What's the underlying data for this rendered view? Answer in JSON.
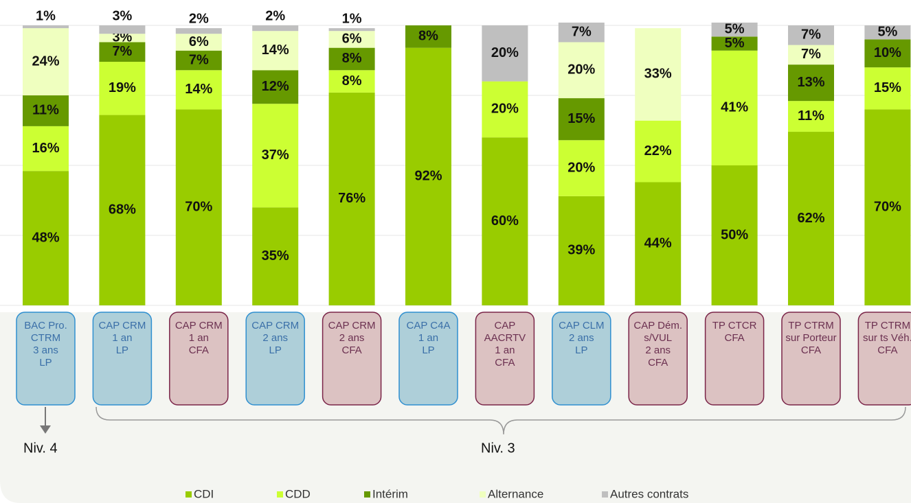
{
  "chart_data": {
    "type": "stacked_bar",
    "categories": [
      [
        "BAC Pro.",
        "CTRM",
        "3 ans",
        "LP"
      ],
      [
        "CAP CRM",
        "1 an",
        "LP"
      ],
      [
        "CAP CRM",
        "1 an",
        "CFA"
      ],
      [
        "CAP CRM",
        "2 ans",
        "LP"
      ],
      [
        "CAP CRM",
        "2 ans",
        "CFA"
      ],
      [
        "CAP C4A",
        "1 an",
        "LP"
      ],
      [
        "CAP",
        "AACRTV",
        "1 an",
        "CFA"
      ],
      [
        "CAP CLM",
        "2 ans",
        "LP"
      ],
      [
        "CAP Dém.",
        "s/VUL",
        "2 ans",
        "CFA"
      ],
      [
        "TP CTCR",
        "CFA"
      ],
      [
        "TP CTRM",
        "sur Porteur",
        "CFA"
      ],
      [
        "TP CTRM",
        "sur ts Véh.",
        "CFA"
      ]
    ],
    "box_colors": [
      "#aecfd9",
      "#aecfd9",
      "#dcc2c2",
      "#aecfd9",
      "#dcc2c2",
      "#aecfd9",
      "#dcc2c2",
      "#aecfd9",
      "#dcc2c2",
      "#dcc2c2",
      "#dcc2c2",
      "#dcc2c2"
    ],
    "series": [
      {
        "name": "CDI",
        "color": "#99cc00",
        "values": [
          48,
          68,
          70,
          35,
          76,
          92,
          60,
          39,
          44,
          50,
          62,
          70
        ],
        "value_labels": [
          "48%",
          "68%",
          "70%",
          "35%",
          "76%",
          "92%",
          "60%",
          "39%",
          "44%",
          "50%",
          "62%",
          "70%"
        ]
      },
      {
        "name": "CDD",
        "color": "#ccff33",
        "values": [
          16,
          19,
          14,
          37,
          8,
          null,
          20,
          20,
          22,
          41,
          11,
          15
        ],
        "value_labels": [
          "16%",
          "19%",
          "14%",
          "37%",
          "8%",
          null,
          "20%",
          "20%",
          "22%",
          "41%",
          "11%",
          "15%"
        ]
      },
      {
        "name": "Intérim",
        "color": "#669900",
        "values": [
          11,
          7,
          7,
          12,
          8,
          8,
          null,
          15,
          null,
          5,
          13,
          10
        ],
        "value_labels": [
          "11%",
          "7%",
          "7%",
          "12%",
          "8%",
          "8%",
          null,
          "15%",
          null,
          "5%",
          "13%",
          "10%"
        ]
      },
      {
        "name": "Alternance",
        "color": "#efffbf",
        "values": [
          24,
          3,
          6,
          14,
          6,
          null,
          null,
          20,
          33,
          null,
          7,
          null
        ],
        "value_labels": [
          "24%",
          "3%",
          "6%",
          "14%",
          "6%",
          null,
          null,
          "20%",
          "33%",
          null,
          "7%",
          null
        ]
      },
      {
        "name": "Autres contrats",
        "color": "#bfbfbf",
        "values": [
          1,
          3,
          2,
          2,
          1,
          null,
          20,
          7,
          null,
          5,
          7,
          5
        ],
        "value_labels": [
          "1%",
          "3%",
          "2%",
          "2%",
          "1%",
          null,
          "20%",
          "7%",
          null,
          "5%",
          "7%",
          "5%"
        ]
      }
    ],
    "ylim": [
      0,
      100
    ],
    "yticks": [
      0,
      25,
      50,
      75,
      100
    ],
    "grid": true,
    "annotations": [
      "Niv. 4",
      "Niv. 3"
    ]
  }
}
